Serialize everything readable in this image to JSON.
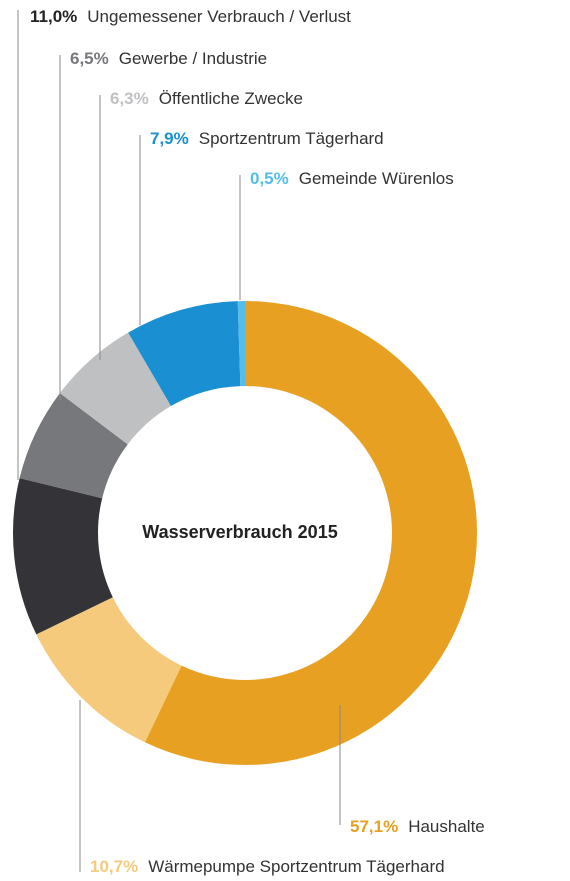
{
  "chart_data": {
    "type": "donut",
    "title": "Wasserverbrauch 2015",
    "categories": [
      "Haushalte",
      "Wärmepumpe Sportzentrum Tägerhard",
      "Ungemessener Verbrauch / Verlust",
      "Gewerbe / Industrie",
      "Öffentliche Zwecke",
      "Sportzentrum Tägerhard",
      "Gemeinde Würenlos"
    ],
    "values": [
      57.1,
      10.7,
      11.0,
      6.5,
      6.3,
      7.9,
      0.5
    ],
    "value_labels": [
      "57,1%",
      "10,7%",
      "11,0%",
      "6,5%",
      "6,3%",
      "7,9%",
      "0,5%"
    ],
    "colors": [
      "#e8a022",
      "#f6ca7c",
      "#333338",
      "#77787b",
      "#bfc0c2",
      "#1a8fd2",
      "#55bde9"
    ]
  }
}
